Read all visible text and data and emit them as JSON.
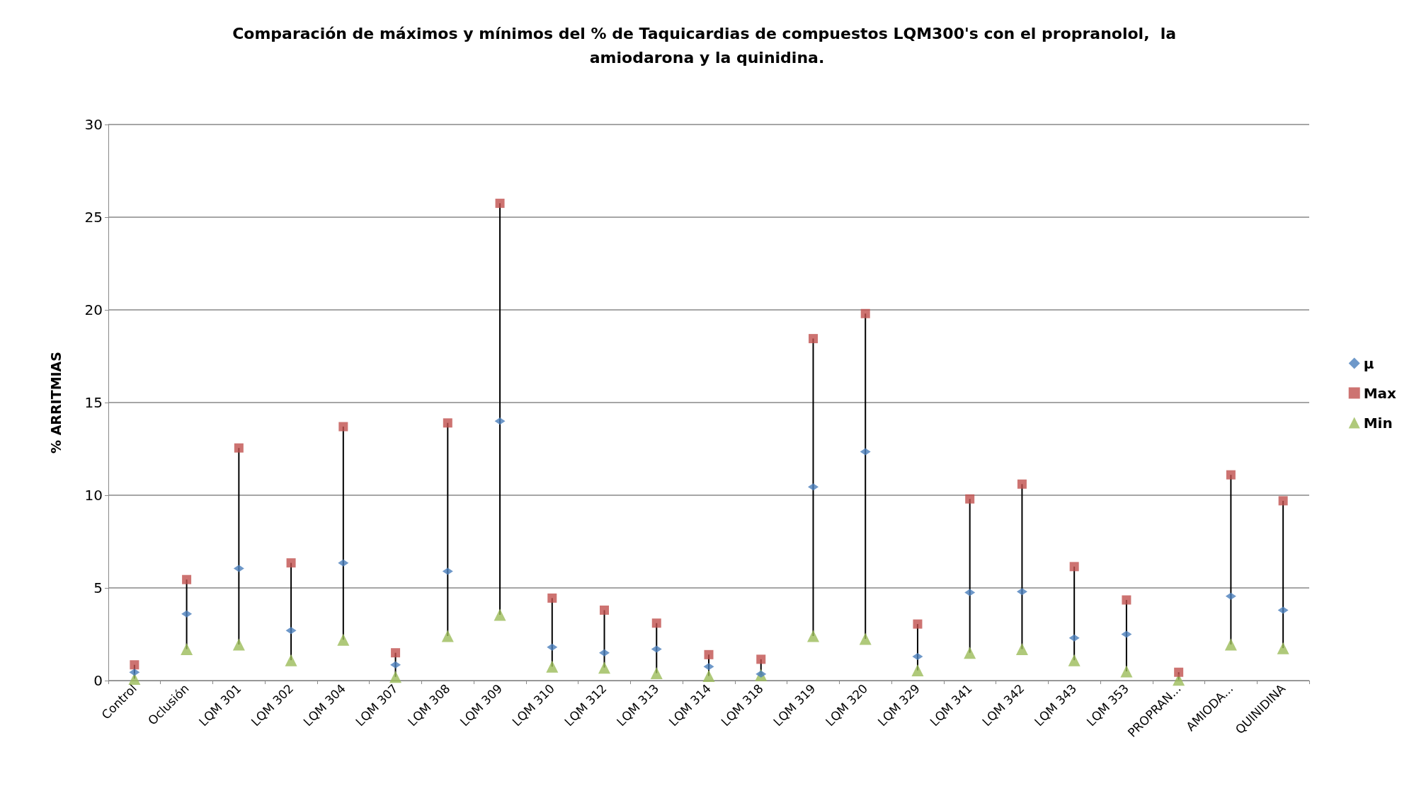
{
  "chart_data": {
    "type": "scatter",
    "title": "Comparación de máximos y mínimos del % de Taquicardias de compuestos LQM300's con el propranolol,  la amiodarona y la quinidina.",
    "ylabel": "% ARRITMIAS",
    "categories": [
      "Control",
      "Oclusión",
      "LQM 301",
      "LQM 302",
      "LQM 304",
      "LQM 307",
      "LQM 308",
      "LQM 309",
      "LQM 310",
      "LQM 312",
      "LQM 313",
      "LQM 314",
      "LQM 318",
      "LQM 319",
      "LQM 320",
      "LQM 329",
      "LQM 341",
      "LQM 342",
      "LQM 343",
      "LQM 353",
      "PROPRAN...",
      "AMIODA...",
      "QUINIDINA"
    ],
    "series": [
      {
        "name": "μ",
        "color": "#4a7ebb",
        "marker": "diamond",
        "values": [
          0.45,
          3.6,
          6.05,
          2.7,
          6.35,
          0.85,
          5.9,
          14.0,
          1.8,
          1.5,
          1.7,
          0.75,
          0.35,
          10.45,
          12.35,
          1.3,
          4.75,
          4.8,
          2.3,
          2.5,
          null,
          4.55,
          3.8
        ]
      },
      {
        "name": "Max",
        "color": "#c0504d",
        "marker": "square",
        "values": [
          0.85,
          5.45,
          12.55,
          6.35,
          13.7,
          1.5,
          13.9,
          25.75,
          4.45,
          3.8,
          3.1,
          1.4,
          1.15,
          18.45,
          19.8,
          3.05,
          9.8,
          10.6,
          6.15,
          4.35,
          0.45,
          11.1,
          9.7
        ]
      },
      {
        "name": "Min",
        "color": "#9bbb59",
        "marker": "triangle",
        "values": [
          0.1,
          1.7,
          1.95,
          1.1,
          2.2,
          0.2,
          2.4,
          3.55,
          0.75,
          0.7,
          0.4,
          0.25,
          0.3,
          2.4,
          2.25,
          0.55,
          1.5,
          1.7,
          1.1,
          0.5,
          0.05,
          1.95,
          1.75
        ]
      }
    ],
    "ylim": [
      0,
      30
    ],
    "yticks": [
      0,
      5,
      10,
      15,
      20,
      25,
      30
    ],
    "grid": "y",
    "legend": "right"
  }
}
